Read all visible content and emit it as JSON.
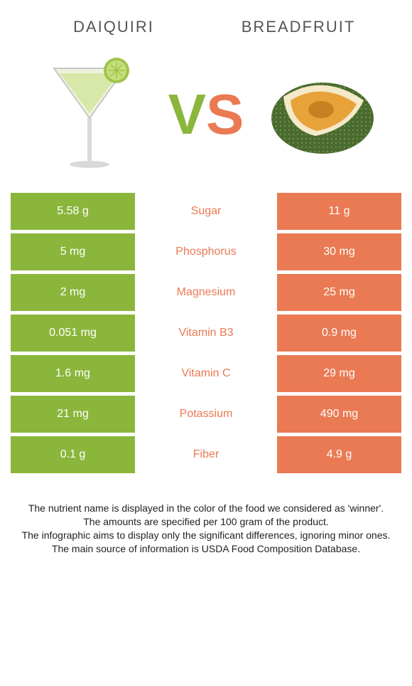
{
  "colors": {
    "left": "#8bb63c",
    "right": "#ea7a53",
    "mid_bg": "#ffffff",
    "title": "#555555",
    "footer": "#222222"
  },
  "header": {
    "left_title": "DAIQUIRI",
    "right_title": "BREADFRUIT"
  },
  "vs": {
    "v": "V",
    "s": "S"
  },
  "nutrients": [
    {
      "label": "Sugar",
      "left": "5.58 g",
      "right": "11 g",
      "winner": "right"
    },
    {
      "label": "Phosphorus",
      "left": "5 mg",
      "right": "30 mg",
      "winner": "right"
    },
    {
      "label": "Magnesium",
      "left": "2 mg",
      "right": "25 mg",
      "winner": "right"
    },
    {
      "label": "Vitamin B3",
      "left": "0.051 mg",
      "right": "0.9 mg",
      "winner": "right"
    },
    {
      "label": "Vitamin C",
      "left": "1.6 mg",
      "right": "29 mg",
      "winner": "right"
    },
    {
      "label": "Potassium",
      "left": "21 mg",
      "right": "490 mg",
      "winner": "right"
    },
    {
      "label": "Fiber",
      "left": "0.1 g",
      "right": "4.9 g",
      "winner": "right"
    }
  ],
  "footer": {
    "l1": "The nutrient name is displayed in the color of the food we considered as 'winner'.",
    "l2": "The amounts are specified per 100 gram of the product.",
    "l3": "The infographic aims to display only the significant differences, ignoring minor ones.",
    "l4": "The main source of information is USDA Food Composition Database."
  }
}
